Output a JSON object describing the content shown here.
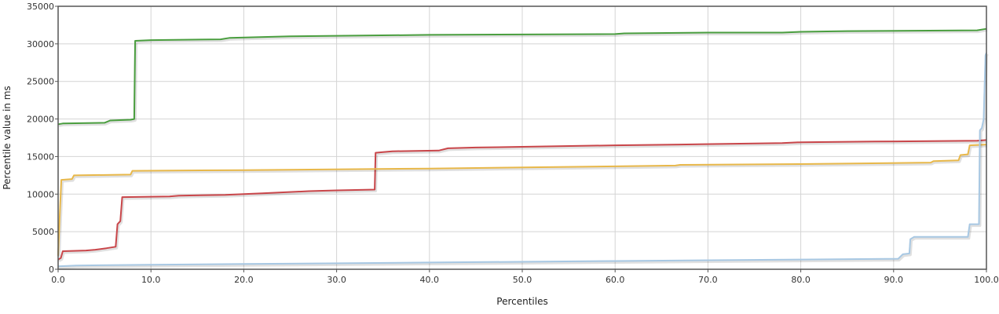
{
  "chart_data": {
    "type": "line",
    "title": "",
    "xlabel": "Percentiles",
    "ylabel": "Percentile value in ms",
    "xlim": [
      0,
      100
    ],
    "ylim": [
      0,
      35000
    ],
    "grid": true,
    "legend": "none",
    "x_ticks": [
      "0.0",
      "10.0",
      "20.0",
      "30.0",
      "40.0",
      "50.0",
      "60.0",
      "70.0",
      "80.0",
      "90.0",
      "100.0"
    ],
    "y_ticks": [
      "0",
      "5000",
      "10000",
      "15000",
      "20000",
      "25000",
      "30000",
      "35000"
    ],
    "series": [
      {
        "color": "#4a9e3f",
        "points": [
          [
            0,
            19300
          ],
          [
            0.5,
            19400
          ],
          [
            5,
            19500
          ],
          [
            5.6,
            19800
          ],
          [
            7.8,
            19900
          ],
          [
            8.2,
            20000
          ],
          [
            8.3,
            30400
          ],
          [
            10,
            30500
          ],
          [
            17.5,
            30600
          ],
          [
            18.5,
            30800
          ],
          [
            25,
            31000
          ],
          [
            40,
            31200
          ],
          [
            60,
            31300
          ],
          [
            61,
            31400
          ],
          [
            70,
            31500
          ],
          [
            78,
            31500
          ],
          [
            80,
            31600
          ],
          [
            85,
            31700
          ],
          [
            99,
            31800
          ],
          [
            100,
            32000
          ]
        ]
      },
      {
        "color": "#c9464a",
        "points": [
          [
            0,
            1300
          ],
          [
            0.3,
            1500
          ],
          [
            0.5,
            2400
          ],
          [
            3,
            2500
          ],
          [
            4,
            2600
          ],
          [
            5.2,
            2800
          ],
          [
            6.2,
            3000
          ],
          [
            6.4,
            6000
          ],
          [
            6.7,
            6400
          ],
          [
            6.9,
            9600
          ],
          [
            12,
            9700
          ],
          [
            13,
            9800
          ],
          [
            18,
            9900
          ],
          [
            22,
            10100
          ],
          [
            27,
            10400
          ],
          [
            30,
            10500
          ],
          [
            34.1,
            10600
          ],
          [
            34.2,
            15500
          ],
          [
            35,
            15600
          ],
          [
            36,
            15700
          ],
          [
            41,
            15800
          ],
          [
            42,
            16100
          ],
          [
            45,
            16200
          ],
          [
            50,
            16300
          ],
          [
            60,
            16500
          ],
          [
            67,
            16600
          ],
          [
            72,
            16700
          ],
          [
            78,
            16800
          ],
          [
            80,
            16900
          ],
          [
            88,
            17000
          ],
          [
            99,
            17100
          ],
          [
            100,
            17200
          ]
        ]
      },
      {
        "color": "#e8b84a",
        "points": [
          [
            0,
            1800
          ],
          [
            0.2,
            8000
          ],
          [
            0.35,
            11900
          ],
          [
            1.5,
            12000
          ],
          [
            1.7,
            12500
          ],
          [
            7.8,
            12600
          ],
          [
            8,
            13100
          ],
          [
            20,
            13200
          ],
          [
            40,
            13400
          ],
          [
            60,
            13700
          ],
          [
            66.5,
            13800
          ],
          [
            67,
            13900
          ],
          [
            80,
            14000
          ],
          [
            94,
            14200
          ],
          [
            94.3,
            14400
          ],
          [
            97,
            14500
          ],
          [
            97.2,
            15200
          ],
          [
            98,
            15300
          ],
          [
            98.2,
            16500
          ],
          [
            100,
            16600
          ]
        ]
      },
      {
        "color": "#a8c8e3",
        "points": [
          [
            0,
            400
          ],
          [
            2,
            500
          ],
          [
            10,
            600
          ],
          [
            20,
            700
          ],
          [
            40,
            900
          ],
          [
            60,
            1100
          ],
          [
            80,
            1300
          ],
          [
            90.5,
            1400
          ],
          [
            91,
            2000
          ],
          [
            91.7,
            2100
          ],
          [
            91.8,
            4000
          ],
          [
            92.2,
            4300
          ],
          [
            98,
            4300
          ],
          [
            98.2,
            6000
          ],
          [
            99.2,
            6000
          ],
          [
            99.3,
            18500
          ],
          [
            99.5,
            18800
          ],
          [
            99.7,
            20000
          ],
          [
            99.9,
            28500
          ],
          [
            100,
            28800
          ]
        ]
      }
    ]
  }
}
